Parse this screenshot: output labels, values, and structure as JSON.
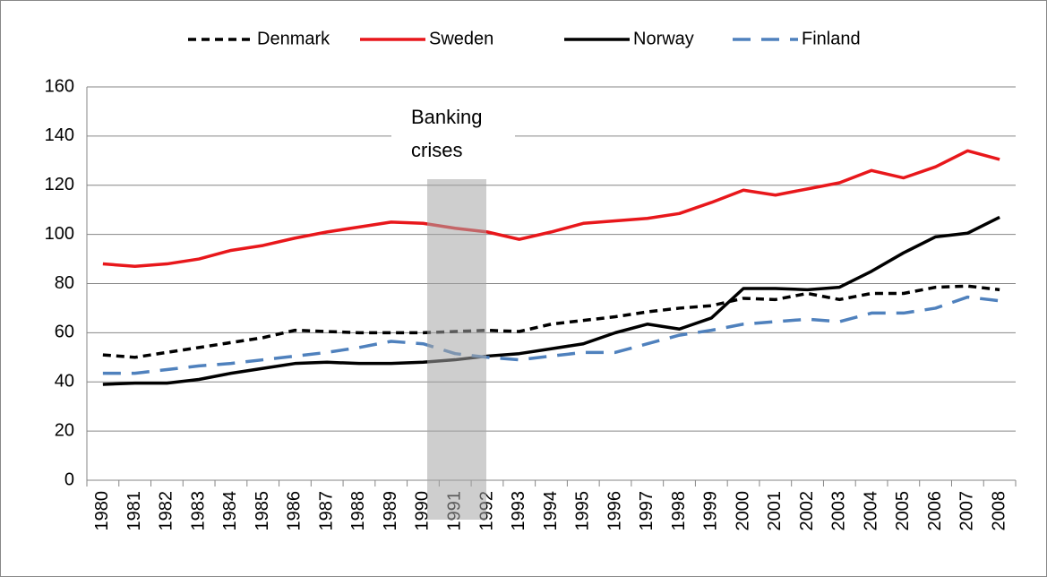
{
  "chart_data": {
    "type": "line",
    "annotation": "Banking crises",
    "categories": [
      "1980",
      "1981",
      "1982",
      "1983",
      "1984",
      "1985",
      "1986",
      "1987",
      "1988",
      "1989",
      "1990",
      "1991",
      "1992",
      "1993",
      "1994",
      "1995",
      "1996",
      "1997",
      "1998",
      "1999",
      "2000",
      "2001",
      "2002",
      "2003",
      "2004",
      "2005",
      "2006",
      "2007",
      "2008"
    ],
    "series": [
      {
        "name": "Denmark",
        "color": "#000000",
        "line_style": "short-dash",
        "values": [
          51,
          50,
          52,
          54,
          56,
          58,
          61,
          60.5,
          60,
          60,
          60,
          60.5,
          61,
          60.5,
          63.5,
          65,
          66.5,
          68.5,
          70,
          71,
          74,
          73.5,
          76,
          73.5,
          76,
          76,
          78.5,
          79,
          77.5
        ]
      },
      {
        "name": "Sweden",
        "color": "#e8171b",
        "line_style": "solid",
        "values": [
          88,
          87,
          88,
          90,
          93.5,
          95.5,
          98.5,
          101,
          103,
          105,
          104.5,
          102.5,
          101,
          98,
          101,
          104.5,
          105.5,
          106.5,
          108.5,
          113,
          118,
          116,
          118.5,
          121,
          126,
          123,
          127.5,
          134,
          130.5
        ]
      },
      {
        "name": "Norway",
        "color": "#000000",
        "line_style": "solid",
        "values": [
          39,
          39.5,
          39.5,
          41,
          43.5,
          45.5,
          47.5,
          48,
          47.5,
          47.5,
          48,
          49,
          50.5,
          51.5,
          53.5,
          55.5,
          60,
          63.5,
          61.5,
          66,
          78,
          78,
          77.5,
          78.5,
          85,
          92.5,
          99,
          100.5,
          107
        ]
      },
      {
        "name": "Finland",
        "color": "#4f81bd",
        "line_style": "long-dash",
        "values": [
          43.5,
          43.5,
          45,
          46.5,
          47.5,
          49,
          50.5,
          52,
          54,
          56.5,
          55.5,
          51.5,
          50,
          49,
          50.5,
          52,
          52,
          55.5,
          59,
          61,
          63.5,
          64.5,
          65.5,
          64.5,
          68,
          68,
          70,
          74.5,
          73
        ]
      }
    ],
    "ylim": [
      0,
      160
    ],
    "yticks": [
      0,
      20,
      40,
      60,
      80,
      100,
      120,
      140,
      160
    ],
    "grid": true
  }
}
